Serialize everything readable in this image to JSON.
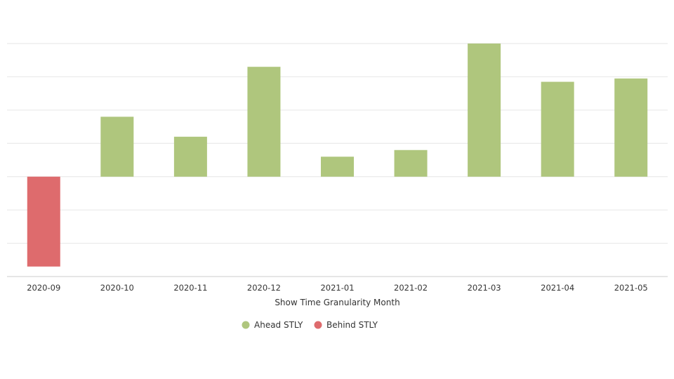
{
  "chart_data": {
    "type": "bar",
    "categories": [
      "2020-09",
      "2020-10",
      "2020-11",
      "2020-12",
      "2021-01",
      "2021-02",
      "2021-03",
      "2021-04",
      "2021-05"
    ],
    "values": [
      -2.7,
      1.8,
      1.2,
      3.3,
      0.6,
      0.8,
      4.0,
      2.85,
      2.95
    ],
    "xlabel": "Show Time Granularity Month",
    "ylabel": "",
    "ylim": [
      -3,
      4
    ],
    "grid": true,
    "legend": {
      "placement": "bottom-center",
      "entries": [
        {
          "name": "Ahead STLY",
          "color": "#afc67d"
        },
        {
          "name": "Behind STLY",
          "color": "#de6b6d"
        }
      ]
    },
    "colors": {
      "ahead": "#afc67d",
      "behind": "#de6b6d"
    }
  }
}
